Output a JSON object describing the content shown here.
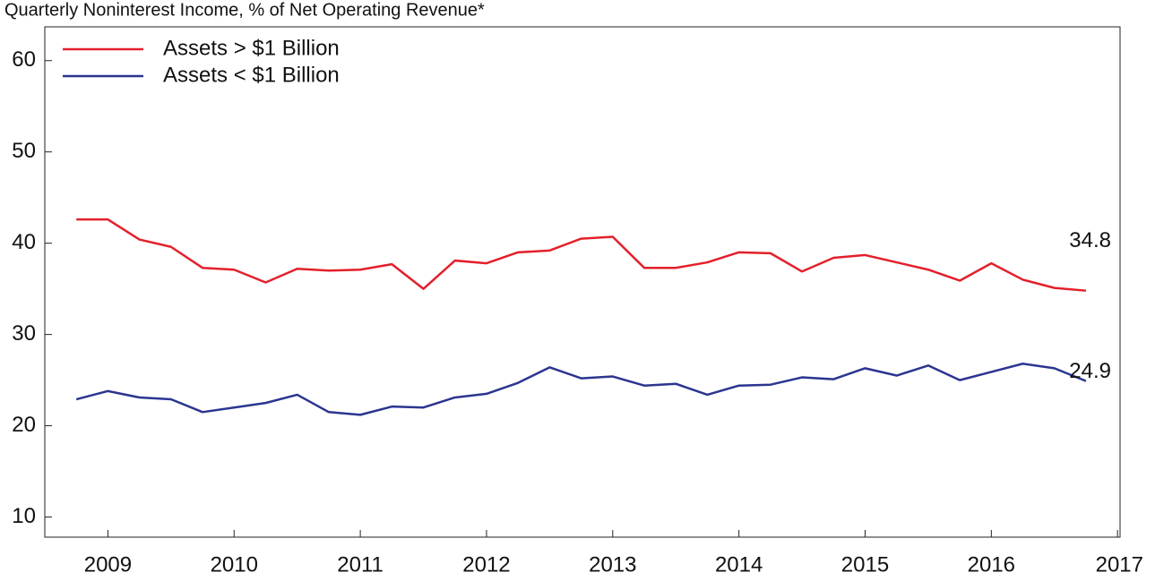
{
  "chart_data": {
    "type": "line",
    "title": "Quarterly Noninterest Income, % of Net Operating Revenue*",
    "x": [
      2008.75,
      2009.0,
      2009.25,
      2009.5,
      2009.75,
      2010.0,
      2010.25,
      2010.5,
      2010.75,
      2011.0,
      2011.25,
      2011.5,
      2011.75,
      2012.0,
      2012.25,
      2012.5,
      2012.75,
      2013.0,
      2013.25,
      2013.5,
      2013.75,
      2014.0,
      2014.25,
      2014.5,
      2014.75,
      2015.0,
      2015.25,
      2015.5,
      2015.75,
      2016.0,
      2016.25,
      2016.5,
      2016.75
    ],
    "series": [
      {
        "name": "Assets > $1 Billion",
        "color": "#e3202b",
        "values": [
          42.6,
          42.6,
          40.4,
          39.6,
          37.3,
          37.1,
          35.7,
          37.2,
          37.0,
          37.1,
          37.7,
          35.0,
          38.1,
          37.8,
          39.0,
          39.2,
          40.5,
          40.7,
          37.3,
          37.3,
          37.9,
          39.0,
          38.9,
          36.9,
          38.4,
          38.7,
          37.9,
          37.1,
          35.9,
          37.8,
          36.0,
          35.1,
          34.8
        ]
      },
      {
        "name": "Assets < $1 Billion",
        "color": "#2b3590",
        "values": [
          22.9,
          23.8,
          23.1,
          22.9,
          21.5,
          22.0,
          22.5,
          23.4,
          21.5,
          21.2,
          22.1,
          22.0,
          23.1,
          23.5,
          24.7,
          26.4,
          25.2,
          25.4,
          24.4,
          24.6,
          23.4,
          24.4,
          24.5,
          25.3,
          25.1,
          26.3,
          25.5,
          26.6,
          25.0,
          25.9,
          26.8,
          26.3,
          24.9
        ]
      }
    ],
    "xlim": [
      2008.5,
      2017.02
    ],
    "xticks": [
      2009,
      2010,
      2011,
      2012,
      2013,
      2014,
      2015,
      2016,
      2017
    ],
    "ylim": [
      7.8,
      63.7
    ],
    "yticks": [
      10,
      20,
      30,
      40,
      50,
      60
    ],
    "grid": false,
    "legend": "upper left"
  }
}
